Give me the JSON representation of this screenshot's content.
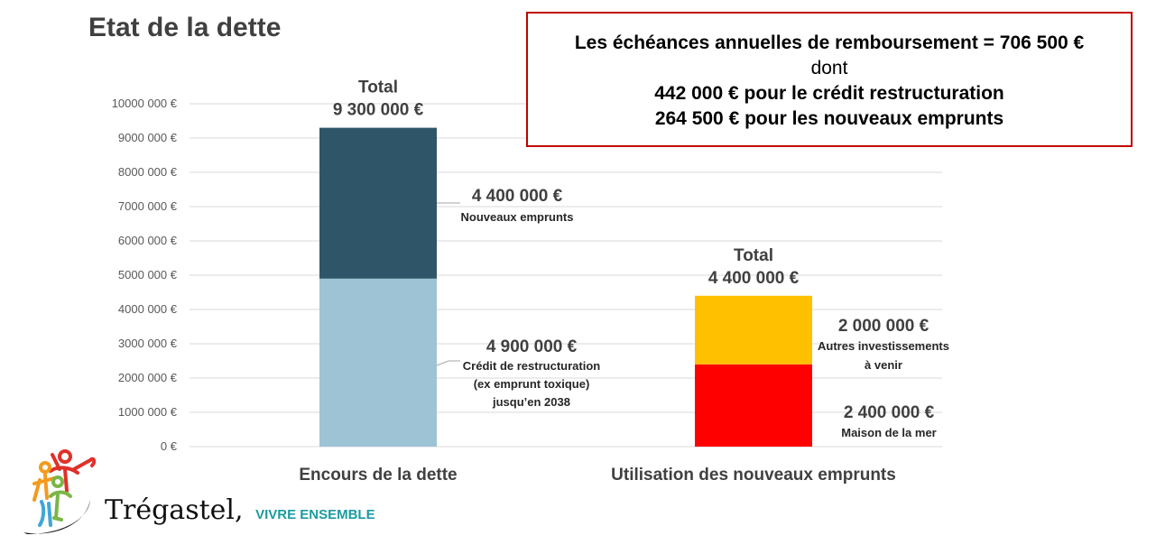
{
  "page": {
    "title": "Etat de la dette"
  },
  "info_box": {
    "line1": "Les échéances annuelles de remboursement = 706 500 €",
    "line2": "dont",
    "line3": "442 000 € pour le crédit restructuration",
    "line4": "264 500 € pour les nouveaux emprunts"
  },
  "colors": {
    "nouveaux_emprunts": "#2f5668",
    "credit_restructuration": "#9dc3d4",
    "autres_investissements": "#ffc000",
    "maison_de_la_mer": "#ff0000",
    "grid": "#d9d9d9",
    "axis_text": "#595959",
    "label_text": "#404040"
  },
  "chart_data": {
    "type": "bar",
    "stacked": true,
    "categories": [
      "Encours de la dette",
      "Utilisation des nouveaux emprunts"
    ],
    "y_ticks": [
      "0 €",
      "1000 000 €",
      "2000 000 €",
      "3000 000 €",
      "4000 000 €",
      "5000 000 €",
      "6000 000 €",
      "7000 000 €",
      "8000 000 €",
      "9000 000 €",
      "10000 000 €"
    ],
    "ylim": [
      0,
      10000000
    ],
    "grid": true,
    "segments": [
      {
        "category": 0,
        "name": "Crédit de restructuration",
        "value": 4900000,
        "color_key": "credit_restructuration",
        "value_label": "4 900 000 €",
        "desc": [
          "Crédit de restructuration",
          "(ex emprunt toxique)",
          "jusqu’en 2038"
        ]
      },
      {
        "category": 0,
        "name": "Nouveaux emprunts",
        "value": 4400000,
        "color_key": "nouveaux_emprunts",
        "value_label": "4 400 000 €",
        "desc": [
          "Nouveaux emprunts"
        ]
      },
      {
        "category": 1,
        "name": "Maison de la mer",
        "value": 2400000,
        "color_key": "maison_de_la_mer",
        "value_label": "2 400 000 €",
        "desc": [
          "Maison de la mer"
        ]
      },
      {
        "category": 1,
        "name": "Autres investissements à venir",
        "value": 2000000,
        "color_key": "autres_investissements",
        "value_label": "2 000 000 €",
        "desc": [
          "Autres investissements",
          "à venir"
        ]
      }
    ],
    "totals": [
      {
        "category": 0,
        "label": "Total",
        "value": 9300000,
        "value_label": "9 300 000 €"
      },
      {
        "category": 1,
        "label": "Total",
        "value": 4400000,
        "value_label": "4 400 000 €"
      }
    ]
  },
  "logo": {
    "name": "Trégastel,",
    "tagline": "VIVRE ENSEMBLE"
  }
}
